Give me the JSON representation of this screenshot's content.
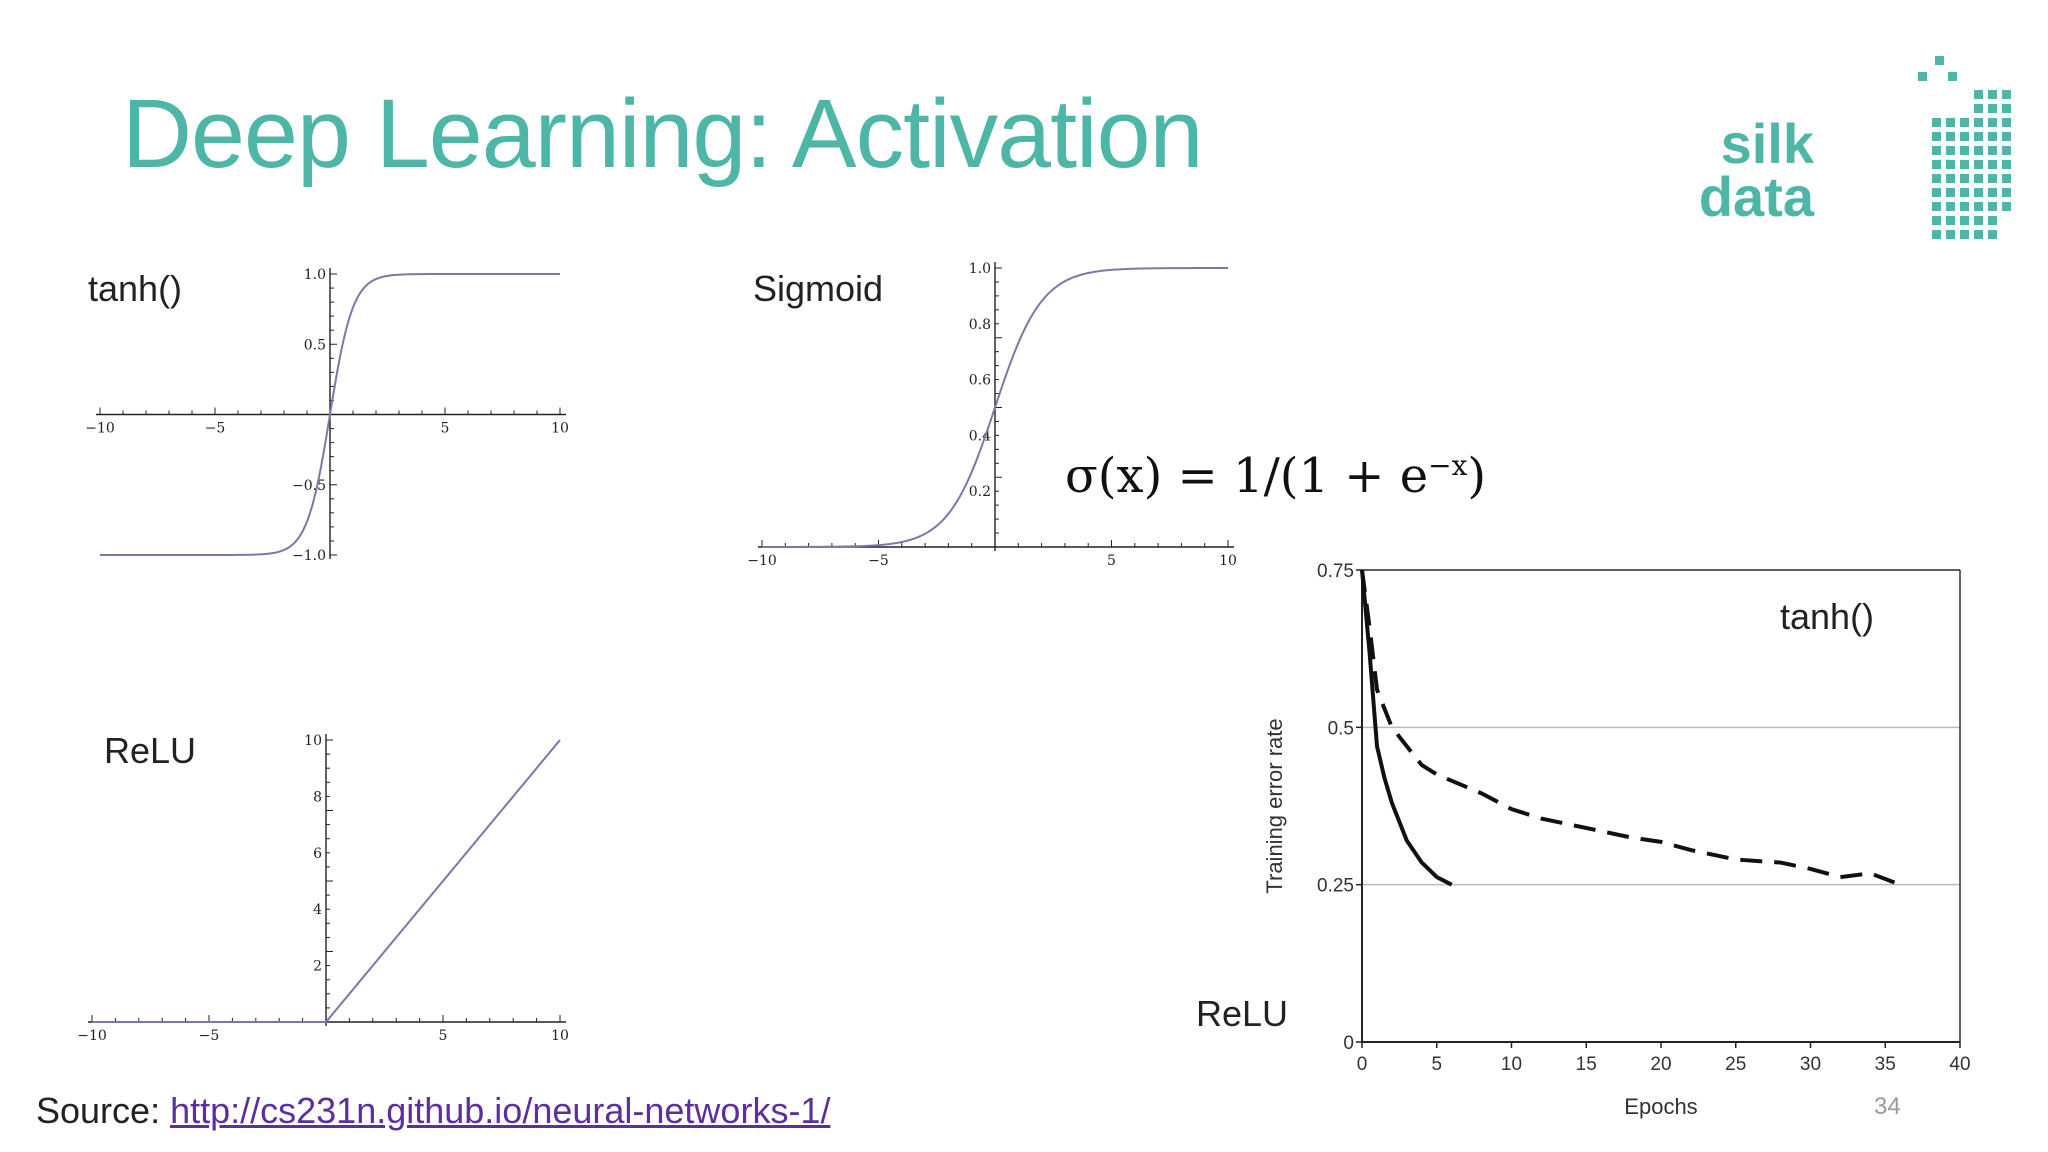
{
  "slide": {
    "title": "Deep Learning: Activation",
    "page_number": "34",
    "source_prefix": "Source: ",
    "source_link": "http://cs231n.github.io/neural-networks-1/",
    "accent_color": "#4db6a6",
    "link_color": "#5b2f9e"
  },
  "logo": {
    "line1": "silk",
    "line2": "data"
  },
  "labels": {
    "tanh": "tanh()",
    "sigmoid": "Sigmoid",
    "relu": "ReLU",
    "training_tanh": "tanh()",
    "training_relu": "ReLU"
  },
  "formula": {
    "left": "σ(x) = 1/(1 + e",
    "exponent": "−x",
    "right": ")"
  },
  "chart_data": [
    {
      "id": "tanh",
      "type": "line",
      "function": "tanh",
      "xlim": [
        -10,
        10
      ],
      "ylim": [
        -1,
        1
      ],
      "x_ticks": [
        -10,
        -5,
        5,
        10
      ],
      "x_tick_labels": [
        "−10",
        "−5",
        "5",
        "10"
      ],
      "y_ticks": [
        -1.0,
        -0.5,
        0.5,
        1.0
      ],
      "y_tick_labels": [
        "−1.0",
        "−0.5",
        "0.5",
        "1.0"
      ],
      "line_color": "#7b78a8"
    },
    {
      "id": "sigmoid",
      "type": "line",
      "function": "sigmoid",
      "xlim": [
        -10,
        10
      ],
      "ylim": [
        0,
        1
      ],
      "x_ticks": [
        -10,
        -5,
        5,
        10
      ],
      "x_tick_labels": [
        "−10",
        "−5",
        "5",
        "10"
      ],
      "y_ticks": [
        0.2,
        0.4,
        0.6,
        0.8,
        1.0
      ],
      "y_tick_labels": [
        "0.2",
        "0.4",
        "0.6",
        "0.8",
        "1.0"
      ],
      "line_color": "#7b78a8"
    },
    {
      "id": "relu",
      "type": "line",
      "function": "relu",
      "xlim": [
        -10,
        10
      ],
      "ylim": [
        0,
        10
      ],
      "x_ticks": [
        -10,
        -5,
        5,
        10
      ],
      "x_tick_labels": [
        "−10",
        "−5",
        "5",
        "10"
      ],
      "y_ticks": [
        2,
        4,
        6,
        8,
        10
      ],
      "y_tick_labels": [
        "2",
        "4",
        "6",
        "8",
        "10"
      ],
      "line_color": "#7b78a8"
    },
    {
      "id": "training",
      "type": "line",
      "xlabel": "Epochs",
      "ylabel": "Training error rate",
      "xlim": [
        0,
        40
      ],
      "ylim": [
        0,
        0.75
      ],
      "x_ticks": [
        0,
        5,
        10,
        15,
        20,
        25,
        30,
        35,
        40
      ],
      "y_ticks": [
        0,
        0.25,
        0.5,
        0.75
      ],
      "y_tick_labels": [
        "0",
        "0.25",
        "0.5",
        "0.75"
      ],
      "grid": true,
      "series": [
        {
          "style": "solid",
          "x": [
            0,
            0.5,
            1,
            1.5,
            2,
            3,
            4,
            5,
            6
          ],
          "y": [
            0.75,
            0.62,
            0.47,
            0.42,
            0.38,
            0.32,
            0.285,
            0.262,
            0.25
          ]
        },
        {
          "style": "dashed",
          "x": [
            0,
            0.5,
            1,
            1.5,
            2,
            3,
            4,
            5,
            6,
            8,
            10,
            12,
            15,
            18,
            20,
            22,
            25,
            28,
            30,
            32,
            34,
            36
          ],
          "y": [
            0.75,
            0.66,
            0.56,
            0.53,
            0.5,
            0.47,
            0.44,
            0.425,
            0.415,
            0.395,
            0.37,
            0.355,
            0.34,
            0.325,
            0.318,
            0.305,
            0.29,
            0.285,
            0.275,
            0.262,
            0.268,
            0.25
          ]
        }
      ]
    }
  ]
}
